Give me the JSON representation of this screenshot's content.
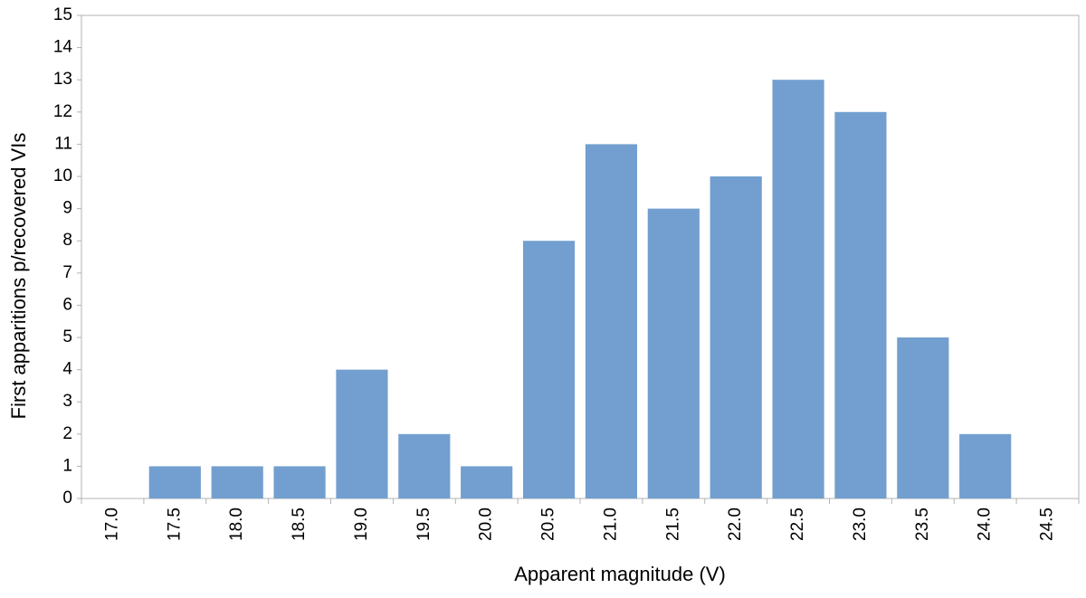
{
  "chart_data": {
    "type": "bar",
    "xlabel": "Apparent magnitude (V)",
    "ylabel": "First apparitions p/recovered VIs",
    "categories": [
      "17.0",
      "17.5",
      "18.0",
      "18.5",
      "19.0",
      "19.5",
      "20.0",
      "20.5",
      "21.0",
      "21.5",
      "22.0",
      "22.5",
      "23.0",
      "23.5",
      "24.0",
      "24.5"
    ],
    "values": [
      0,
      1,
      1,
      1,
      4,
      2,
      1,
      8,
      11,
      9,
      10,
      13,
      12,
      5,
      2,
      0
    ],
    "color": "#729fcf",
    "ylim": [
      0,
      15
    ],
    "yticks": [
      0,
      1,
      2,
      3,
      4,
      5,
      6,
      7,
      8,
      9,
      10,
      11,
      12,
      13,
      14,
      15
    ],
    "grid": false
  }
}
